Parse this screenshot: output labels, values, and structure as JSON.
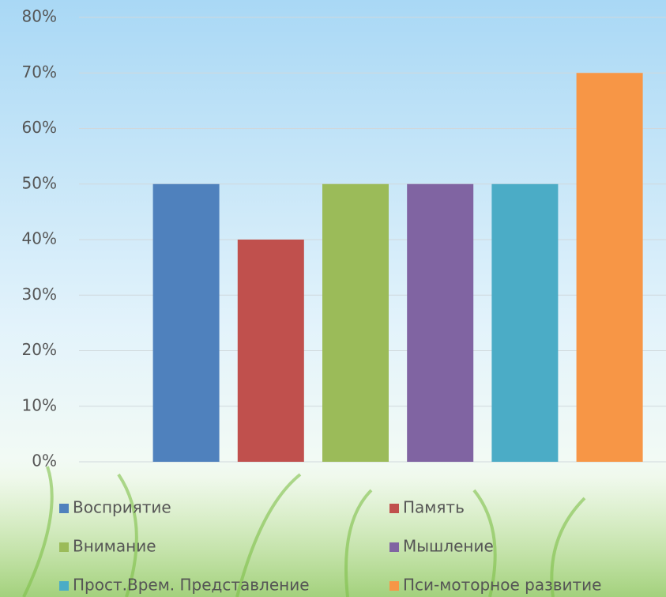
{
  "chart_data": {
    "type": "bar",
    "series": [
      {
        "name": "Восприятие",
        "color": "#4f81bd",
        "values": [
          50
        ]
      },
      {
        "name": "Память",
        "color": "#c0504d",
        "values": [
          40
        ]
      },
      {
        "name": "Внимание",
        "color": "#9bbb59",
        "values": [
          50
        ]
      },
      {
        "name": "Мышление",
        "color": "#8064a2",
        "values": [
          50
        ]
      },
      {
        "name": "Прост.Врем. Представление",
        "color": "#4bacc6",
        "values": [
          50
        ]
      },
      {
        "name": "Пси-моторное развитие",
        "color": "#f79646",
        "values": [
          70
        ]
      }
    ],
    "ylim": [
      0,
      80
    ],
    "yticks": [
      {
        "value": 0,
        "label": "0%"
      },
      {
        "value": 10,
        "label": "10%"
      },
      {
        "value": 20,
        "label": "20%"
      },
      {
        "value": 30,
        "label": "30%"
      },
      {
        "value": 40,
        "label": "40%"
      },
      {
        "value": 50,
        "label": "50%"
      },
      {
        "value": 60,
        "label": "60%"
      },
      {
        "value": 70,
        "label": "70%"
      },
      {
        "value": 80,
        "label": "80%"
      }
    ],
    "grid": true
  }
}
